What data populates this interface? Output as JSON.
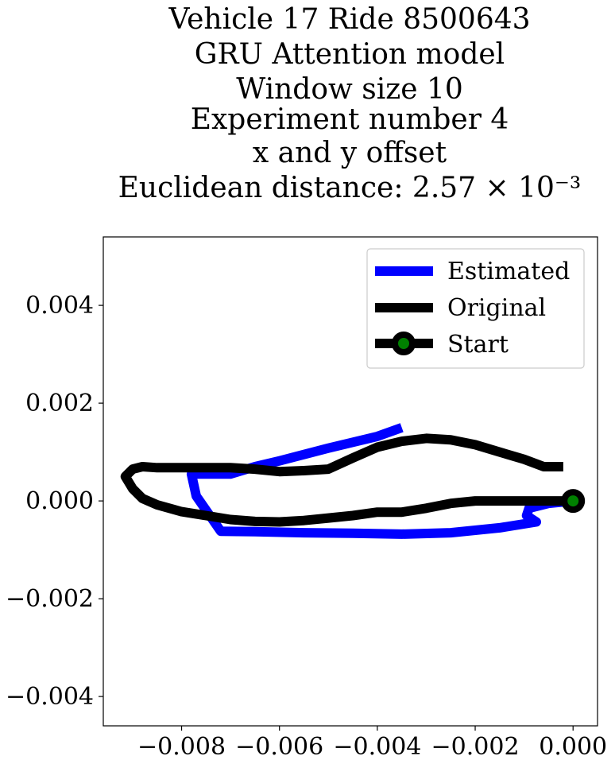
{
  "chart_data": {
    "type": "line",
    "title_lines": [
      "Vehicle 17 Ride 8500643",
      "GRU Attention model",
      "Window size 10",
      "Experiment number 4",
      "x and y offset",
      "Euclidean distance: 2.57 × 10⁻³"
    ],
    "xlabel": "",
    "ylabel": "",
    "xlim": [
      -0.0096,
      0.0005
    ],
    "ylim": [
      -0.0046,
      0.0054
    ],
    "x_ticks": [
      -0.008,
      -0.006,
      -0.004,
      -0.002,
      0.0
    ],
    "x_tick_labels": [
      "−0.008",
      "−0.006",
      "−0.004",
      "−0.002",
      "0.000"
    ],
    "y_ticks": [
      0.004,
      0.002,
      0.0,
      -0.002,
      -0.004
    ],
    "y_tick_labels": [
      "0.004",
      "0.002",
      "0.000",
      "−0.002",
      "−0.004"
    ],
    "grid": false,
    "legend_position": "top-right",
    "series": [
      {
        "name": "Estimated",
        "color": "#0000ff",
        "points": [
          [
            0.0,
            0.0
          ],
          [
            -0.0005,
            -5e-05
          ],
          [
            -0.0009,
            -0.00015
          ],
          [
            -0.00095,
            -0.0003
          ],
          [
            -0.00075,
            -0.00043
          ],
          [
            -0.0015,
            -0.00055
          ],
          [
            -0.0025,
            -0.00065
          ],
          [
            -0.0035,
            -0.00068
          ],
          [
            -0.0045,
            -0.00066
          ],
          [
            -0.0055,
            -0.00065
          ],
          [
            -0.0065,
            -0.00063
          ],
          [
            -0.0072,
            -0.00062
          ],
          [
            -0.0077,
            0.0001
          ],
          [
            -0.0078,
            0.00055
          ],
          [
            -0.0075,
            0.00055
          ],
          [
            -0.007,
            0.00055
          ],
          [
            -0.0065,
            0.0007
          ],
          [
            -0.006,
            0.00082
          ],
          [
            -0.0055,
            0.00095
          ],
          [
            -0.005,
            0.00108
          ],
          [
            -0.0045,
            0.0012
          ],
          [
            -0.004,
            0.00132
          ],
          [
            -0.0035,
            0.0015
          ]
        ]
      },
      {
        "name": "Original",
        "color": "#000000",
        "points": [
          [
            0.0,
            0.0
          ],
          [
            -0.0007,
            0.0
          ],
          [
            -0.002,
            0.0
          ],
          [
            -0.0025,
            -5e-05
          ],
          [
            -0.003,
            -0.00015
          ],
          [
            -0.0035,
            -0.00023
          ],
          [
            -0.004,
            -0.00023
          ],
          [
            -0.0045,
            -0.0003
          ],
          [
            -0.005,
            -0.00035
          ],
          [
            -0.0055,
            -0.0004
          ],
          [
            -0.006,
            -0.00043
          ],
          [
            -0.0065,
            -0.00042
          ],
          [
            -0.007,
            -0.00038
          ],
          [
            -0.0075,
            -0.0003
          ],
          [
            -0.008,
            -0.00022
          ],
          [
            -0.0085,
            -8e-05
          ],
          [
            -0.0088,
            5e-05
          ],
          [
            -0.009,
            0.00025
          ],
          [
            -0.00915,
            0.0005
          ],
          [
            -0.009,
            0.00065
          ],
          [
            -0.0088,
            0.0007
          ],
          [
            -0.0085,
            0.00068
          ],
          [
            -0.008,
            0.00068
          ],
          [
            -0.0075,
            0.00068
          ],
          [
            -0.007,
            0.00068
          ],
          [
            -0.0065,
            0.00065
          ],
          [
            -0.006,
            0.0006
          ],
          [
            -0.0055,
            0.00062
          ],
          [
            -0.005,
            0.00065
          ],
          [
            -0.0045,
            0.00088
          ],
          [
            -0.004,
            0.0011
          ],
          [
            -0.0035,
            0.00122
          ],
          [
            -0.003,
            0.00128
          ],
          [
            -0.0025,
            0.00125
          ],
          [
            -0.002,
            0.00115
          ],
          [
            -0.0015,
            0.001
          ],
          [
            -0.001,
            0.00085
          ],
          [
            -0.0006,
            0.0007
          ],
          [
            -0.0002,
            0.0007
          ]
        ]
      }
    ],
    "start_point": {
      "name": "Start",
      "x": 0.0,
      "y": 0.0,
      "color": "#008000",
      "edge_color": "#000000"
    },
    "legend": [
      "Estimated",
      "Original",
      "Start"
    ]
  }
}
